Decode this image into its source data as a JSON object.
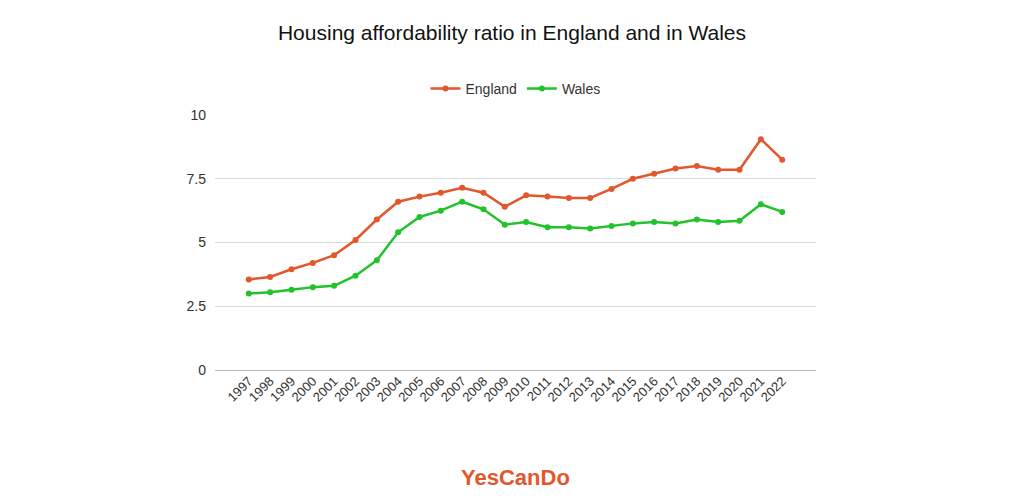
{
  "chart_data": {
    "type": "line",
    "title": "Housing affordability ratio in England and in Wales",
    "footer": "YesCanDo",
    "categories": [
      "1997",
      "1998",
      "1999",
      "2000",
      "2001",
      "2002",
      "2003",
      "2004",
      "2005",
      "2006",
      "2007",
      "2008",
      "2009",
      "2010",
      "2011",
      "2012",
      "2013",
      "2014",
      "2015",
      "2016",
      "2017",
      "2018",
      "2019",
      "2020",
      "2021",
      "2022"
    ],
    "series": [
      {
        "name": "England",
        "color": "#e2572b",
        "values": [
          3.55,
          3.65,
          3.95,
          4.2,
          4.5,
          5.1,
          5.9,
          6.6,
          6.8,
          6.95,
          7.15,
          6.95,
          6.4,
          6.85,
          6.8,
          6.75,
          6.75,
          7.1,
          7.5,
          7.7,
          7.9,
          8.0,
          7.85,
          7.85,
          9.05,
          8.25
        ]
      },
      {
        "name": "Wales",
        "color": "#22c22a",
        "values": [
          3.0,
          3.05,
          3.15,
          3.25,
          3.3,
          3.7,
          4.3,
          5.4,
          6.0,
          6.25,
          6.6,
          6.3,
          5.7,
          5.8,
          5.6,
          5.6,
          5.55,
          5.65,
          5.75,
          5.8,
          5.75,
          5.9,
          5.8,
          5.85,
          6.5,
          6.2
        ]
      }
    ],
    "ylim": [
      0,
      10
    ],
    "yticks": [
      0,
      2.5,
      5,
      7.5,
      10
    ],
    "grid": true,
    "legend": "top",
    "marker": "circle"
  }
}
